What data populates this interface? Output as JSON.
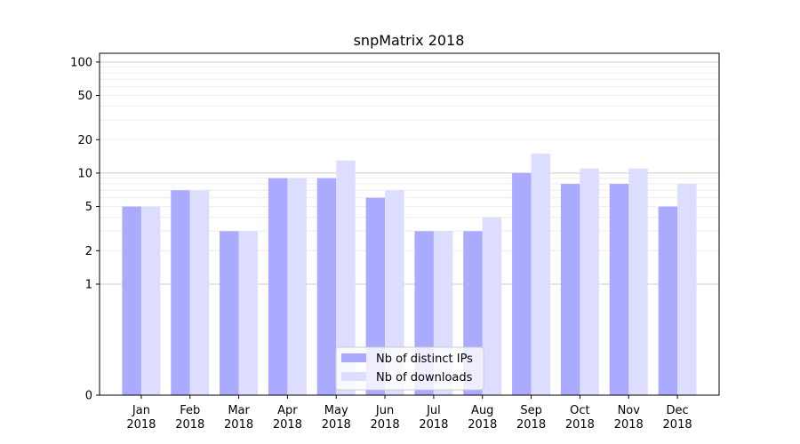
{
  "chart_data": {
    "type": "bar",
    "title": "snpMatrix 2018",
    "xlabel": "",
    "ylabel": "",
    "y_scale": "symlog",
    "ylim": [
      0,
      120
    ],
    "y_ticks": [
      0,
      1,
      2,
      5,
      10,
      20,
      50,
      100
    ],
    "categories": [
      [
        "Jan",
        "2018"
      ],
      [
        "Feb",
        "2018"
      ],
      [
        "Mar",
        "2018"
      ],
      [
        "Apr",
        "2018"
      ],
      [
        "May",
        "2018"
      ],
      [
        "Jun",
        "2018"
      ],
      [
        "Jul",
        "2018"
      ],
      [
        "Aug",
        "2018"
      ],
      [
        "Sep",
        "2018"
      ],
      [
        "Oct",
        "2018"
      ],
      [
        "Nov",
        "2018"
      ],
      [
        "Dec",
        "2018"
      ]
    ],
    "series": [
      {
        "name": "Nb of distinct IPs",
        "color": "#aaaaff",
        "values": [
          5,
          7,
          3,
          9,
          9,
          6,
          3,
          3,
          10,
          8,
          8,
          5
        ]
      },
      {
        "name": "Nb of downloads",
        "color": "#ddddff",
        "values": [
          5,
          7,
          3,
          9,
          13,
          7,
          3,
          4,
          15,
          11,
          11,
          8
        ]
      }
    ],
    "legend_position": "lower-center",
    "grid": true
  }
}
